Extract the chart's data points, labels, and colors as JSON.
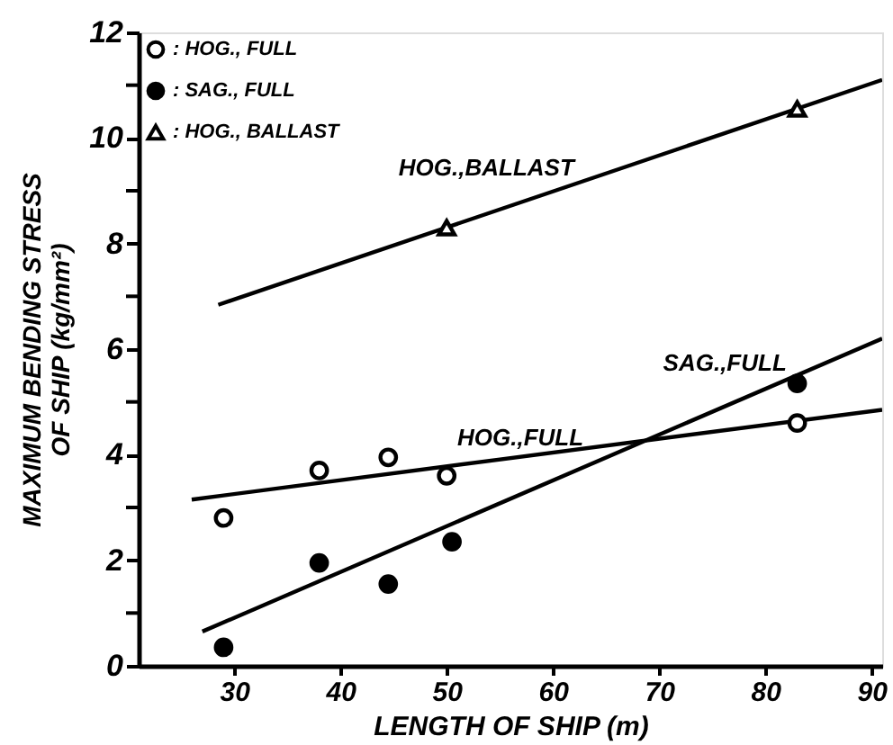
{
  "chart_data": {
    "type": "scatter",
    "xlabel": "LENGTH OF SHIP (m)",
    "ylabel": "MAXIMUM BENDING STRESS\nOF SHIP (kg/mm²)",
    "xlim": [
      21,
      91
    ],
    "xticks": [
      30,
      40,
      50,
      60,
      70,
      80,
      90
    ],
    "ylim": [
      0,
      12
    ],
    "yticks": [
      0,
      {
        "value": 1,
        "label": null
      },
      2,
      {
        "value": 3,
        "label": null
      },
      4,
      {
        "value": 5,
        "label": null
      },
      6,
      {
        "value": 7,
        "label": null
      },
      8,
      {
        "value": 9,
        "label": null
      },
      10,
      {
        "value": 11,
        "label": null
      },
      12
    ],
    "grid": false,
    "legend": "top left",
    "series": [
      {
        "name": ": HOG., FULL",
        "color": "#000000",
        "marker": "circle",
        "x": [
          29,
          38,
          44.5,
          50,
          83
        ],
        "values": [
          2.8,
          3.7,
          3.95,
          3.6,
          4.6
        ]
      },
      {
        "name": ": SAG., FULL",
        "color": "#000000",
        "marker": "circle",
        "x": [
          29,
          38,
          44.5,
          50.5,
          83
        ],
        "values": [
          0.35,
          1.95,
          1.55,
          2.35,
          5.35
        ]
      },
      {
        "name": ": HOG., BALLAST",
        "color": "#000000",
        "marker": "triangle",
        "x": [
          50,
          83
        ],
        "values": [
          8.3,
          10.55
        ]
      },
      {
        "type": "line",
        "color": "#000000",
        "x": [
          28.5,
          91
        ],
        "values": [
          6.84,
          11.1
        ]
      },
      {
        "type": "line",
        "color": "#000000",
        "x": [
          26,
          91
        ],
        "values": [
          3.15,
          4.85
        ]
      },
      {
        "type": "line",
        "color": "#000000",
        "x": [
          27,
          91
        ],
        "values": [
          0.65,
          6.2
        ]
      }
    ],
    "annotations": [
      {
        "text": "HOG.,BALLAST",
        "x": 62,
        "y": 9.12
      },
      {
        "text": "HOG.,FULL",
        "x": 51,
        "y": 3.8
      },
      {
        "text": "SAG.,FULL",
        "x": 82,
        "y": 5.42
      }
    ]
  }
}
